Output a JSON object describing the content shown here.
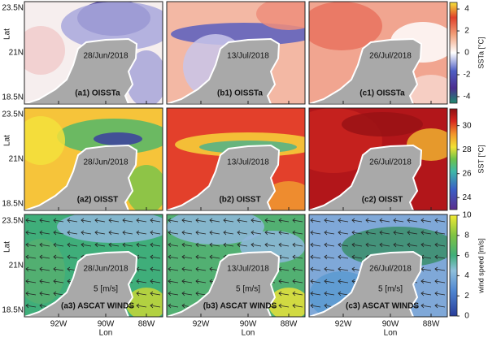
{
  "y_axis_label": "Lat",
  "x_axis_label": "Lon",
  "y_ticks": [
    "23.5N",
    "21N",
    "18.5N"
  ],
  "x_ticks": [
    "92W",
    "90W",
    "88W"
  ],
  "rows": [
    {
      "colorbar": {
        "title": "SSTa [°C]",
        "lim": [
          -4.6,
          4.6
        ],
        "ticks": [
          -4,
          -2,
          0,
          2,
          4
        ]
      },
      "panels": [
        {
          "label": "(a1) OISSTa",
          "date": "28/Jun/2018"
        },
        {
          "label": "(b1) OISSTa",
          "date": "13/Jul/2018"
        },
        {
          "label": "(c1) OISSTa",
          "date": "26/Jul/2018"
        }
      ]
    },
    {
      "colorbar": {
        "title": "SST [°C]",
        "lim": [
          23,
          31.4
        ],
        "ticks": [
          24,
          26,
          28,
          30
        ]
      },
      "panels": [
        {
          "label": "(a2) OISST",
          "date": "28/Jun/2018"
        },
        {
          "label": "(b2) OISST",
          "date": "13/Jul/2018"
        },
        {
          "label": "(c2) OISST",
          "date": "26/Jul/2018"
        }
      ]
    },
    {
      "colorbar": {
        "title": "wind speed [m/s]",
        "lim": [
          0,
          10
        ],
        "ticks": [
          0,
          2,
          4,
          6,
          8,
          10
        ]
      },
      "panels": [
        {
          "label": "(a3) ASCAT WINDS",
          "date": "28/Jun/2018",
          "vector_scale": "5 [m/s]"
        },
        {
          "label": "(b3) ASCAT WINDS",
          "date": "13/Jul/2018",
          "vector_scale": "5 [m/s]"
        },
        {
          "label": "(c3) ASCAT WINDS",
          "date": "26/Jul/2018",
          "vector_scale": "5 [m/s]"
        }
      ]
    }
  ]
}
